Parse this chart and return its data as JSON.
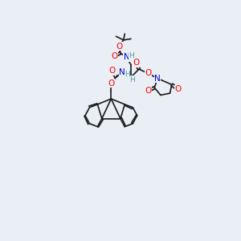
{
  "background_color": "#eaeff5",
  "bond_color": "#1a1a1a",
  "atom_colors": {
    "O": "#ff0000",
    "N": "#0000cc",
    "H": "#4a9999",
    "C": "#1a1a1a"
  },
  "font_size_atom": 7.5,
  "font_size_H": 6.5
}
